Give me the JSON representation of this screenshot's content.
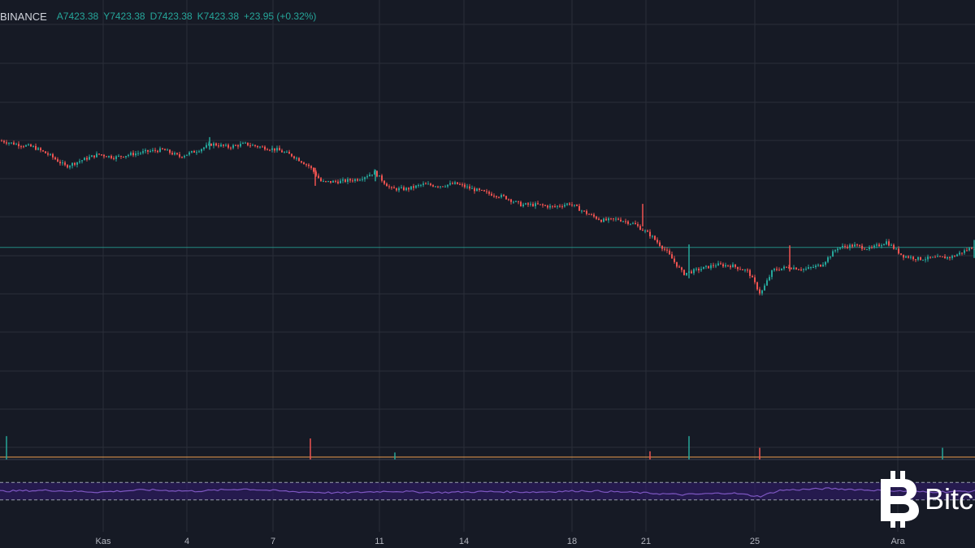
{
  "header": {
    "exchange": "BINANCE",
    "open": "A7423.38",
    "high": "Y7423.38",
    "low": "D7423.38",
    "close": "K7423.38",
    "change": "+23.95 (+0.32%)"
  },
  "colors": {
    "background": "#161a25",
    "up": "#26a69a",
    "down": "#ef5350",
    "grid": "#2a2e39",
    "rsi": "#7e57c2",
    "rsi_band": "#311b6b",
    "volume_ma": "#f0a050"
  },
  "brand": {
    "icon": "bitcoin-logo-icon",
    "text": "Bitc"
  },
  "chart_data": [
    {
      "type": "candlestick",
      "title": "",
      "x_tick_labels": [
        "Kas",
        "4",
        "7",
        "11",
        "14",
        "18",
        "21",
        "25",
        "Ara"
      ],
      "current_price_line": true,
      "grid": true,
      "series": [
        {
          "values": [
            {
              "t": 0,
              "close": 7660
            },
            {
              "t": 20,
              "close": 7652
            },
            {
              "t": 40,
              "close": 7646
            },
            {
              "t": 60,
              "close": 7628
            },
            {
              "t": 80,
              "close": 7603
            },
            {
              "t": 100,
              "close": 7617
            },
            {
              "t": 120,
              "close": 7630
            },
            {
              "t": 140,
              "close": 7623
            },
            {
              "t": 160,
              "close": 7630
            },
            {
              "t": 180,
              "close": 7636
            },
            {
              "t": 200,
              "close": 7640
            },
            {
              "t": 220,
              "close": 7625
            },
            {
              "t": 240,
              "close": 7637
            },
            {
              "t": 260,
              "close": 7653
            },
            {
              "t": 280,
              "close": 7646
            },
            {
              "t": 300,
              "close": 7653
            },
            {
              "t": 320,
              "close": 7646
            },
            {
              "t": 340,
              "close": 7640
            },
            {
              "t": 360,
              "close": 7626
            },
            {
              "t": 380,
              "close": 7603
            },
            {
              "t": 395,
              "close": 7568
            },
            {
              "t": 420,
              "close": 7570
            },
            {
              "t": 440,
              "close": 7575
            },
            {
              "t": 460,
              "close": 7590
            },
            {
              "t": 480,
              "close": 7553
            },
            {
              "t": 500,
              "close": 7553
            },
            {
              "t": 520,
              "close": 7563
            },
            {
              "t": 540,
              "close": 7560
            },
            {
              "t": 560,
              "close": 7565
            },
            {
              "t": 580,
              "close": 7553
            },
            {
              "t": 600,
              "close": 7543
            },
            {
              "t": 620,
              "close": 7535
            },
            {
              "t": 640,
              "close": 7518
            },
            {
              "t": 660,
              "close": 7518
            },
            {
              "t": 680,
              "close": 7513
            },
            {
              "t": 700,
              "close": 7521
            },
            {
              "t": 720,
              "close": 7500
            },
            {
              "t": 740,
              "close": 7483
            },
            {
              "t": 760,
              "close": 7486
            },
            {
              "t": 780,
              "close": 7475
            },
            {
              "t": 800,
              "close": 7450
            },
            {
              "t": 820,
              "close": 7413
            },
            {
              "t": 840,
              "close": 7365
            },
            {
              "t": 860,
              "close": 7375
            },
            {
              "t": 880,
              "close": 7385
            },
            {
              "t": 900,
              "close": 7383
            },
            {
              "t": 920,
              "close": 7370
            },
            {
              "t": 935,
              "close": 7320
            },
            {
              "t": 950,
              "close": 7373
            },
            {
              "t": 970,
              "close": 7380
            },
            {
              "t": 990,
              "close": 7375
            },
            {
              "t": 1010,
              "close": 7385
            },
            {
              "t": 1030,
              "close": 7423
            },
            {
              "t": 1050,
              "close": 7428
            },
            {
              "t": 1070,
              "close": 7420
            },
            {
              "t": 1090,
              "close": 7436
            },
            {
              "t": 1110,
              "close": 7405
            },
            {
              "t": 1130,
              "close": 7398
            },
            {
              "t": 1150,
              "close": 7400
            },
            {
              "t": 1170,
              "close": 7402
            },
            {
              "t": 1195,
              "close": 7423
            }
          ]
        }
      ]
    },
    {
      "type": "bar",
      "title": "",
      "series": [
        {
          "values": [
            {
              "t": 8,
              "v": 1.0
            },
            {
              "t": 382,
              "v": 0.9
            },
            {
              "t": 486,
              "v": 0.3
            },
            {
              "t": 800,
              "v": 0.35
            },
            {
              "t": 848,
              "v": 1.0
            },
            {
              "t": 935,
              "v": 0.5
            },
            {
              "t": 1160,
              "v": 0.5
            }
          ]
        }
      ]
    },
    {
      "type": "line",
      "title": "",
      "ylim": [
        0,
        100
      ],
      "band": [
        30,
        70
      ],
      "series": [
        {
          "values": [
            {
              "t": 0,
              "v": 50
            },
            {
              "t": 60,
              "v": 52
            },
            {
              "t": 120,
              "v": 48
            },
            {
              "t": 180,
              "v": 53
            },
            {
              "t": 240,
              "v": 50
            },
            {
              "t": 300,
              "v": 55
            },
            {
              "t": 360,
              "v": 49
            },
            {
              "t": 420,
              "v": 46
            },
            {
              "t": 480,
              "v": 50
            },
            {
              "t": 540,
              "v": 47
            },
            {
              "t": 600,
              "v": 49
            },
            {
              "t": 660,
              "v": 48
            },
            {
              "t": 720,
              "v": 51
            },
            {
              "t": 780,
              "v": 47
            },
            {
              "t": 840,
              "v": 42
            },
            {
              "t": 900,
              "v": 46
            },
            {
              "t": 935,
              "v": 38
            },
            {
              "t": 960,
              "v": 52
            },
            {
              "t": 1020,
              "v": 56
            },
            {
              "t": 1080,
              "v": 52
            },
            {
              "t": 1140,
              "v": 48
            },
            {
              "t": 1200,
              "v": 50
            }
          ]
        }
      ]
    }
  ]
}
